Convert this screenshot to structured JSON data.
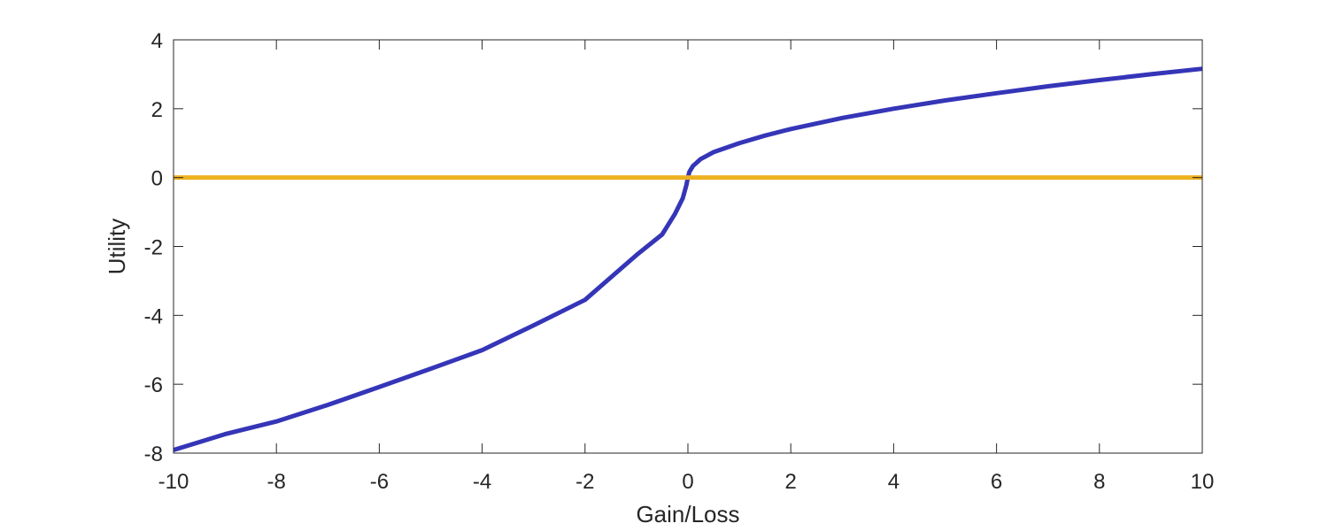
{
  "chart_data": {
    "type": "line",
    "title": "",
    "xlabel": "Gain/Loss",
    "ylabel": "Utility",
    "xlim": [
      -10,
      10
    ],
    "ylim": [
      -8,
      4
    ],
    "xticks": [
      -10,
      -8,
      -6,
      -4,
      -2,
      0,
      2,
      4,
      6,
      8,
      10
    ],
    "yticks": [
      -8,
      -6,
      -4,
      -2,
      0,
      2,
      4
    ],
    "xtick_labels": [
      "-10",
      "-8",
      "-6",
      "-4",
      "-2",
      "0",
      "2",
      "4",
      "6",
      "8",
      "10"
    ],
    "ytick_labels": [
      "-8",
      "-6",
      "-4",
      "-2",
      "0",
      "2",
      "4"
    ],
    "grid": false,
    "box": true,
    "series": [
      {
        "color": "#3535B8",
        "x": [
          -10,
          -9,
          -8,
          -7,
          -6,
          -5,
          -4,
          -3,
          -2,
          -1.5,
          -1,
          -0.5,
          -0.25,
          -0.1,
          -0.03,
          0,
          0.03,
          0.1,
          0.25,
          0.5,
          1,
          1.5,
          2,
          3,
          4,
          5,
          6,
          7,
          8,
          9,
          10
        ],
        "y": [
          -7.91,
          -7.45,
          -7.08,
          -6.6,
          -6.08,
          -5.55,
          -5.01,
          -4.29,
          -3.55,
          -2.9,
          -2.25,
          -1.65,
          -1.05,
          -0.6,
          -0.22,
          0,
          0.17,
          0.34,
          0.54,
          0.74,
          1.0,
          1.22,
          1.41,
          1.73,
          2.0,
          2.24,
          2.45,
          2.65,
          2.83,
          3.0,
          3.16
        ]
      },
      {
        "color": "#EDB120",
        "x": [
          -10,
          10
        ],
        "y": [
          0,
          0
        ]
      }
    ]
  }
}
